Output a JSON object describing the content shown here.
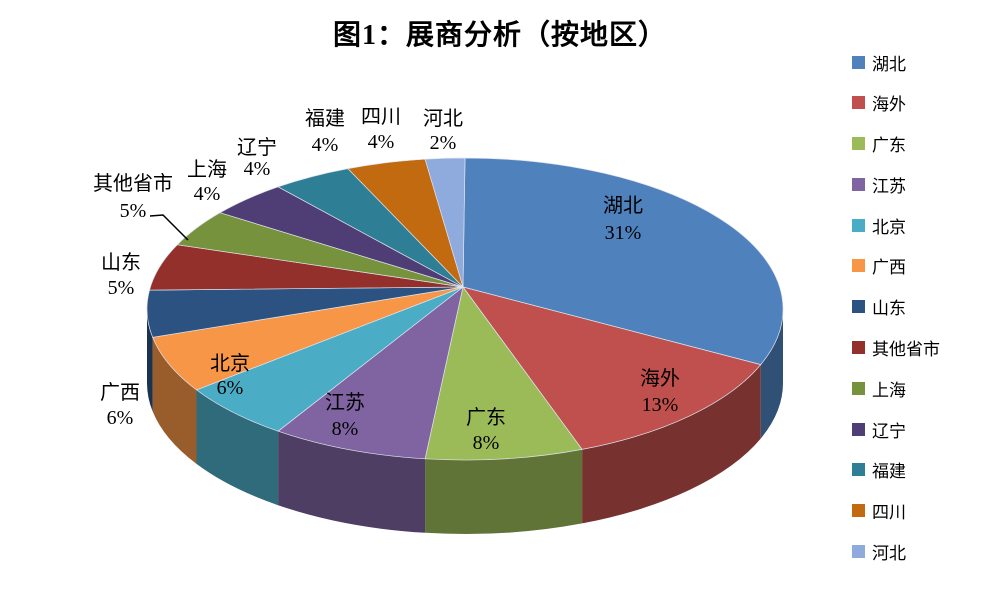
{
  "chart_data": {
    "type": "pie",
    "style": "3d",
    "title": "图1：展商分析（按地区）",
    "unit": "percent",
    "legend_position": "right",
    "total": 100,
    "slices": [
      {
        "label": "湖北",
        "value": 31,
        "pct_text": "31%",
        "color": "#4F81BD",
        "label_placement": "inside"
      },
      {
        "label": "海外",
        "value": 13,
        "pct_text": "13%",
        "color": "#C0504D",
        "label_placement": "inside"
      },
      {
        "label": "广东",
        "value": 8,
        "pct_text": "8%",
        "color": "#9BBB59",
        "label_placement": "inside"
      },
      {
        "label": "江苏",
        "value": 8,
        "pct_text": "8%",
        "color": "#8064A2",
        "label_placement": "inside"
      },
      {
        "label": "北京",
        "value": 6,
        "pct_text": "6%",
        "color": "#4BACC6",
        "label_placement": "inside"
      },
      {
        "label": "广西",
        "value": 6,
        "pct_text": "6%",
        "color": "#F79646",
        "label_placement": "outside"
      },
      {
        "label": "山东",
        "value": 5,
        "pct_text": "5%",
        "color": "#2B5280",
        "label_placement": "outside"
      },
      {
        "label": "其他省市",
        "value": 5,
        "pct_text": "5%",
        "color": "#94302C",
        "label_placement": "outside",
        "leader_line": true
      },
      {
        "label": "上海",
        "value": 4,
        "pct_text": "4%",
        "color": "#76923C",
        "label_placement": "outside"
      },
      {
        "label": "辽宁",
        "value": 4,
        "pct_text": "4%",
        "color": "#4F3E76",
        "label_placement": "outside"
      },
      {
        "label": "福建",
        "value": 4,
        "pct_text": "4%",
        "color": "#2E7E95",
        "label_placement": "outside"
      },
      {
        "label": "四川",
        "value": 4,
        "pct_text": "4%",
        "color": "#C16A10",
        "label_placement": "outside"
      },
      {
        "label": "河北",
        "value": 2,
        "pct_text": "2%",
        "color": "#8FAADC",
        "label_placement": "outside"
      }
    ]
  }
}
